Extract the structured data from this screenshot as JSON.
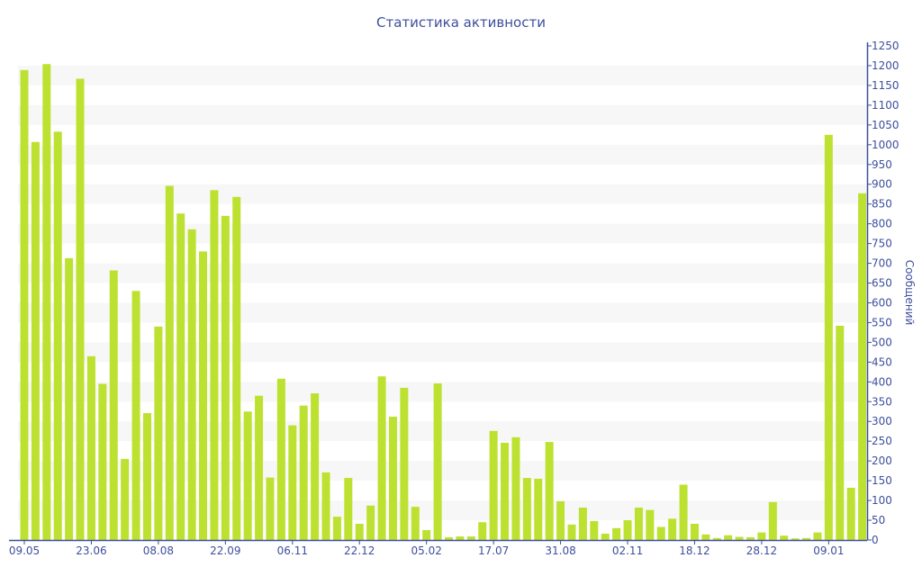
{
  "chart_data": {
    "type": "bar",
    "title": "Статистика активности",
    "xlabel": "",
    "ylabel": "Сообщений",
    "ylim": [
      0,
      1250
    ],
    "ytick_step": 50,
    "grid": "alternating horizontal bands",
    "bar_color": "#bde130",
    "axis_color": "#3e4f9c",
    "x_tick_labels": [
      {
        "index": 0,
        "label": "09.05"
      },
      {
        "index": 6,
        "label": "23.06"
      },
      {
        "index": 12,
        "label": "08.08"
      },
      {
        "index": 18,
        "label": "22.09"
      },
      {
        "index": 24,
        "label": "06.11"
      },
      {
        "index": 30,
        "label": "22.12"
      },
      {
        "index": 36,
        "label": "05.02"
      },
      {
        "index": 42,
        "label": "17.07"
      },
      {
        "index": 48,
        "label": "31.08"
      },
      {
        "index": 54,
        "label": "02.11"
      },
      {
        "index": 60,
        "label": "18.12"
      },
      {
        "index": 66,
        "label": "28.12"
      },
      {
        "index": 72,
        "label": "09.01"
      }
    ],
    "values": [
      1189,
      1007,
      1204,
      1033,
      713,
      1167,
      465,
      395,
      682,
      205,
      630,
      321,
      540,
      896,
      826,
      786,
      730,
      885,
      820,
      868,
      325,
      365,
      158,
      408,
      290,
      340,
      371,
      171,
      59,
      157,
      41,
      87,
      414,
      312,
      385,
      84,
      25,
      396,
      7,
      9,
      9,
      45,
      276,
      246,
      260,
      157,
      155,
      248,
      98,
      39,
      82,
      48,
      16,
      30,
      50,
      82,
      76,
      33,
      54,
      140,
      41,
      14,
      5,
      12,
      8,
      7,
      19,
      96,
      11,
      4,
      5,
      19,
      1025,
      542,
      132,
      877
    ]
  }
}
